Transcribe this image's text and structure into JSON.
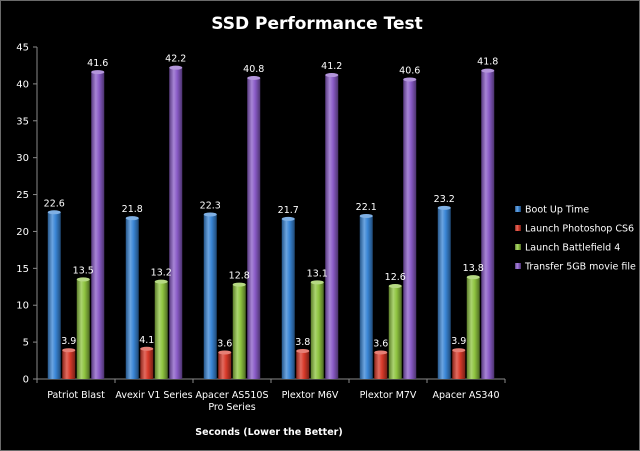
{
  "chart_data": {
    "type": "bar",
    "title": "SSD Performance Test",
    "xlabel": "Seconds (Lower the Better)",
    "ylabel": "",
    "ylim": [
      0,
      45
    ],
    "yticks": [
      0,
      5,
      10,
      15,
      20,
      25,
      30,
      35,
      40,
      45
    ],
    "grid": false,
    "legend_position": "right",
    "categories": [
      [
        "Patriot Blast"
      ],
      [
        "Avexir V1 Series"
      ],
      [
        "Apacer AS510S",
        "Pro Series"
      ],
      [
        "Plextor M6V"
      ],
      [
        "Plextor M7V"
      ],
      [
        "Apacer AS340"
      ]
    ],
    "series": [
      {
        "name": "Boot Up Time",
        "color": "#3a86d6",
        "values": [
          22.6,
          21.8,
          22.3,
          21.7,
          22.1,
          23.2
        ]
      },
      {
        "name": "Launch Photoshop CS6",
        "color": "#d83a2a",
        "values": [
          3.9,
          4.1,
          3.6,
          3.8,
          3.6,
          3.9
        ]
      },
      {
        "name": "Launch Battlefield 4",
        "color": "#8fc440",
        "values": [
          13.5,
          13.2,
          12.8,
          13.1,
          12.6,
          13.8
        ]
      },
      {
        "name": "Transfer 5GB movie file",
        "color": "#8a5cc8",
        "values": [
          41.6,
          42.2,
          40.8,
          41.2,
          40.6,
          41.8
        ]
      }
    ]
  }
}
